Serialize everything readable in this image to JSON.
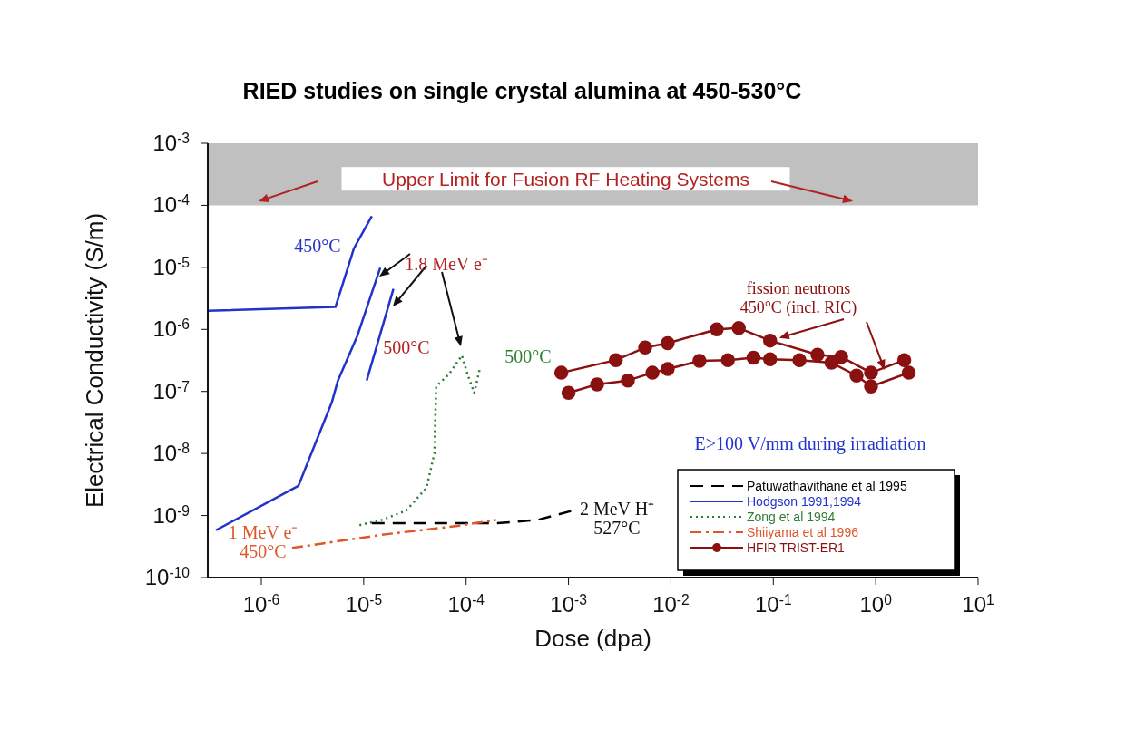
{
  "chart_data": {
    "type": "line",
    "title": "RIED studies on single crystal alumina at 450-530°C",
    "xlabel": "Dose (dpa)",
    "ylabel": "Electrical Conductivity (S/m)",
    "log": "xy",
    "legend": "bottom right",
    "xlim": [
      3e-07,
      10
    ],
    "xticks": [
      {
        "value": 1e-06,
        "label": "10$^{-6}$"
      },
      {
        "value": 1e-05,
        "label": "10$^{-5}$"
      },
      {
        "value": 0.0001,
        "label": "10$^{-4}$"
      },
      {
        "value": 0.001,
        "label": "10$^{-3}$"
      },
      {
        "value": 0.01,
        "label": "10$^{-2}$"
      },
      {
        "value": 0.1,
        "label": "10$^{-1}$"
      },
      {
        "value": 1,
        "label": "10$^{0}$"
      },
      {
        "value": 10,
        "label": "10$^{1}$"
      }
    ],
    "ylim": [
      1e-10,
      0.001
    ],
    "yticks": [
      {
        "value": 1e-10,
        "label": "10$^{-10}$"
      },
      {
        "value": 1e-09,
        "label": "10$^{-9}$"
      },
      {
        "value": 1e-08,
        "label": "10$^{-8}$"
      },
      {
        "value": 1e-07,
        "label": "10$^{-7}$"
      },
      {
        "value": 1e-06,
        "label": "10$^{-6}$"
      },
      {
        "value": 1e-05,
        "label": "10$^{-5}$"
      },
      {
        "value": 0.0001,
        "label": "10$^{-4}$"
      },
      {
        "value": 0.001,
        "label": "10$^{-3}$"
      }
    ],
    "bands": [
      {
        "axis": "y",
        "from": 0.0001,
        "to": 0.001,
        "label": "Upper Limit for Fusion RF Heating Systems",
        "color": "#c0c0c0"
      }
    ],
    "series": [
      {
        "name": "Patuwathavithane et al 1995",
        "color": "#000000",
        "line_style": "dashed",
        "marker": "none",
        "x": [
          1.2e-05,
          0.0002,
          0.0005,
          0.0011
        ],
        "values": [
          7.5e-10,
          7.5e-10,
          8.5e-10,
          1.2e-09
        ]
      },
      {
        "name": "Hodgson 1991,1994",
        "color": "#2233cc",
        "line_style": "solid",
        "marker": "none",
        "x": [
          3e-07,
          5.3e-06,
          8e-06,
          1.2e-05,
          null,
          3.6e-07,
          2.3e-06,
          4.9e-06,
          5.6e-06,
          8.7e-06,
          1.45e-05,
          null,
          1.07e-05,
          1.95e-05
        ],
        "values": [
          2e-06,
          2.3e-06,
          2e-05,
          6.7e-05,
          null,
          5.8e-10,
          3e-09,
          6.8e-08,
          1.5e-07,
          8e-07,
          9.8e-06,
          null,
          1.5e-07,
          4.5e-06
        ]
      },
      {
        "name": "Zong et al 1994",
        "color": "#2e7d32",
        "line_style": "dotted",
        "marker": "none",
        "x": [
          9.1e-06,
          1.5e-05,
          2.6e-05,
          4.1e-05,
          4.9e-05,
          5.1e-05,
          6.8e-05,
          9.1e-05,
          0.000103,
          0.00012,
          0.000135
        ],
        "values": [
          7e-10,
          8.5e-10,
          1.2e-09,
          2.8e-09,
          1e-08,
          1.2e-07,
          1.9e-07,
          3.8e-07,
          1.9e-07,
          9.5e-08,
          2.2e-07
        ]
      },
      {
        "name": "Shiiyama et al 1996",
        "color": "#e0562a",
        "line_style": "dashdot",
        "marker": "none",
        "x": [
          2e-06,
          1.5e-05,
          8.3e-05,
          0.000195
        ],
        "values": [
          3e-10,
          4.9e-10,
          6.8e-10,
          8.5e-10
        ]
      },
      {
        "name": "HFIR TRIST-ER1",
        "color": "#8b1010",
        "line_style": "solid",
        "marker": "circle",
        "x": [
          0.00085,
          0.0029,
          0.0056,
          0.0093,
          0.028,
          0.046,
          0.093,
          0.27,
          0.46,
          0.9,
          1.9
        ],
        "values": [
          2e-07,
          3.2e-07,
          5.1e-07,
          6e-07,
          1e-06,
          1.05e-06,
          6.6e-07,
          3.9e-07,
          3.6e-07,
          2e-07,
          3.2e-07
        ]
      },
      {
        "color": "#8b1010",
        "line_style": "solid",
        "marker": "circle",
        "x": [
          0.001,
          0.0019,
          0.0038,
          0.0066,
          0.0093,
          0.019,
          0.036,
          0.064,
          0.093,
          0.18,
          0.37,
          0.65,
          0.9,
          2.1
        ],
        "values": [
          9.5e-08,
          1.3e-07,
          1.5e-07,
          2e-07,
          2.3e-07,
          3.1e-07,
          3.2e-07,
          3.5e-07,
          3.3e-07,
          3.2e-07,
          2.9e-07,
          1.8e-07,
          1.2e-07,
          2e-07
        ]
      }
    ],
    "annotations": [
      "450°C",
      "1.8 MeV e⁻",
      "500°C",
      "500°C",
      {
        "text": "fission neutrons\n450°C (incl. RIC)",
        "x": 0.093,
        "y": 6.6e-07
      },
      "E>100 V/mm during irradiation",
      "2 MeV H⁺\n527°C",
      "1 MeV e⁻\n450°C"
    ]
  }
}
